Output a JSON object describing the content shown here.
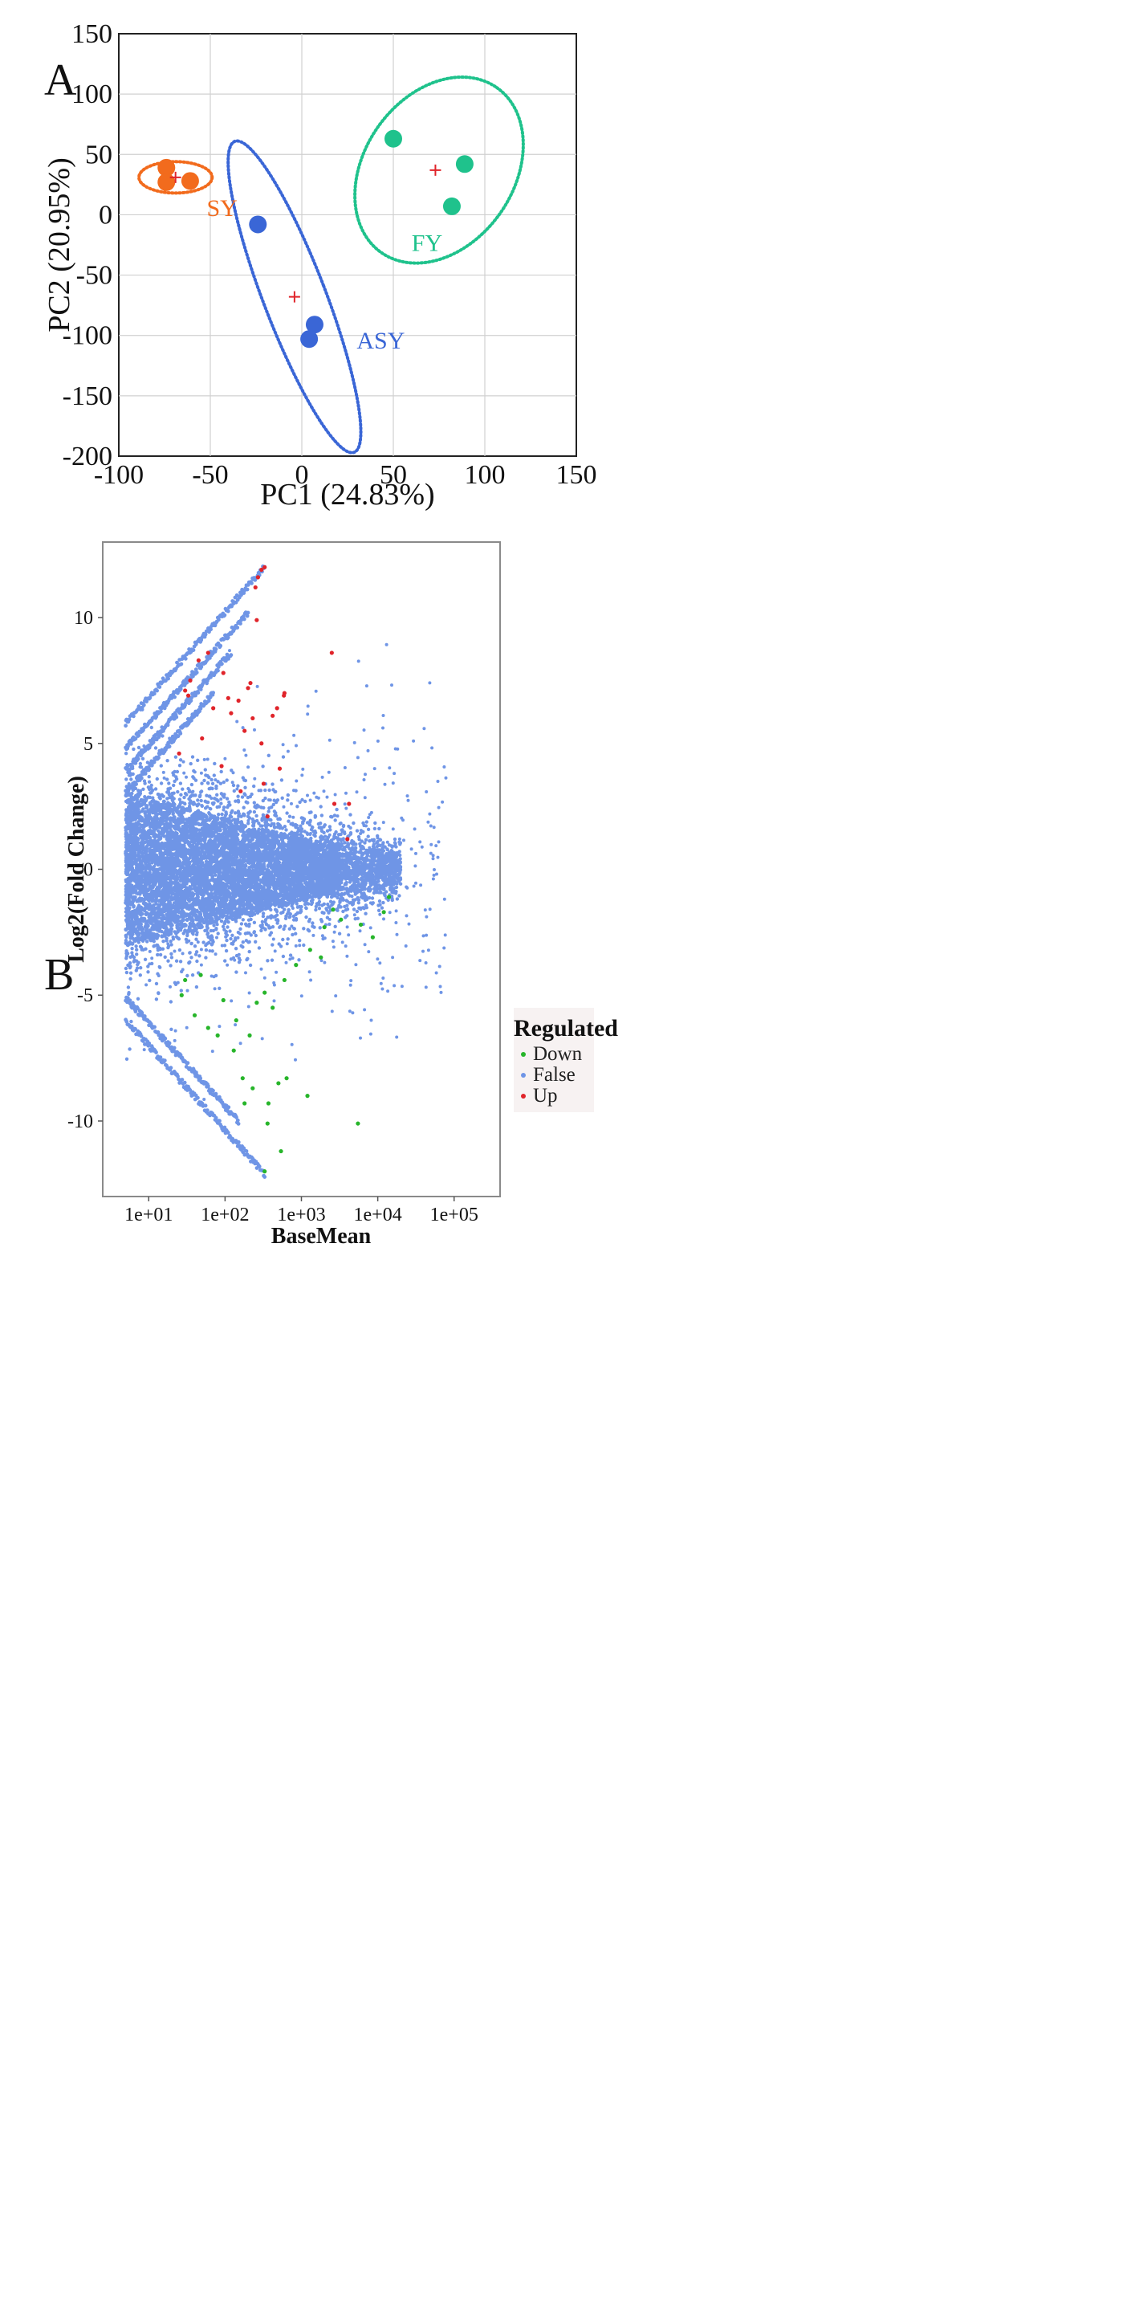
{
  "chart_data": [
    {
      "panel": "A",
      "type": "scatter",
      "xlabel": "PC1 (24.83%)",
      "ylabel": "PC2 (20.95%)",
      "xlim": [
        -100,
        150
      ],
      "ylim": [
        -200,
        150
      ],
      "xticks": [
        -100,
        -50,
        0,
        50,
        100,
        150
      ],
      "yticks": [
        -200,
        -150,
        -100,
        -50,
        0,
        50,
        100,
        150
      ],
      "grid": true,
      "groups": [
        {
          "name": "SY",
          "color": "#f26b1d",
          "points": [
            [
              -74,
              39
            ],
            [
              -74,
              27
            ],
            [
              -61,
              28
            ]
          ],
          "centroid": [
            -69,
            31
          ],
          "ellipse": {
            "center": [
              -69,
              31
            ],
            "rx": 20,
            "ry": 13,
            "angle": 0
          },
          "label_at": [
            -52,
            -1
          ]
        },
        {
          "name": "ASY",
          "color": "#3a66d6",
          "points": [
            [
              -24,
              -8
            ],
            [
              7,
              -91
            ],
            [
              4,
              -103
            ]
          ],
          "centroid": [
            -4,
            -68
          ],
          "ellipse": {
            "center": [
              -4,
              -68
            ],
            "rx": 17,
            "ry": 138,
            "angle": -21
          },
          "label_at": [
            30,
            -111
          ]
        },
        {
          "name": "FY",
          "color": "#1fc28c",
          "points": [
            [
              50,
              63
            ],
            [
              89,
              42
            ],
            [
              82,
              7
            ]
          ],
          "centroid": [
            73,
            37
          ],
          "ellipse": {
            "center": [
              75,
              37
            ],
            "rx": 55,
            "ry": 62,
            "angle": -55
          },
          "label_at": [
            60,
            -30
          ]
        }
      ]
    },
    {
      "panel": "B",
      "type": "scatter",
      "xlabel": "BaseMean",
      "ylabel": "Log2(Fold Change)",
      "xscale": "log",
      "xlim": [
        2.5,
        400000
      ],
      "ylim": [
        -13,
        13
      ],
      "xticks": [
        "1e+01",
        "1e+02",
        "1e+03",
        "1e+04",
        "1e+05"
      ],
      "yticks": [
        -10,
        -5,
        0,
        5,
        10
      ],
      "legend": {
        "title": "Regulated",
        "entries": [
          {
            "label": "Down",
            "color": "#27b52a"
          },
          {
            "label": "False",
            "color": "#6f95e6"
          },
          {
            "label": "Up",
            "color": "#e0242a"
          }
        ]
      },
      "structure": {
        "main_cloud": "dense symmetric fan of non-significant genes around 0, spread ±4 at low BaseMean narrowing to ±0.5 near 1e+05",
        "up_diagonals": [
          {
            "from": [
              5,
              5.8
            ],
            "to": [
              330,
              12
            ]
          },
          {
            "from": [
              5,
              4.8
            ],
            "to": [
              200,
              10.2
            ]
          },
          {
            "from": [
              5,
              3.9
            ],
            "to": [
              120,
              8.6
            ]
          },
          {
            "from": [
              5,
              3.0
            ],
            "to": [
              70,
              7.0
            ]
          }
        ],
        "down_diagonals": [
          {
            "from": [
              5,
              -6.0
            ],
            "to": [
              330,
              -12.1
            ]
          },
          {
            "from": [
              5,
              -5.1
            ],
            "to": [
              150,
              -10.0
            ]
          }
        ],
        "up_points": [
          [
            330,
            12
          ],
          [
            300,
            11.9
          ],
          [
            270,
            11.6
          ],
          [
            250,
            11.2
          ],
          [
            33,
            6.9
          ],
          [
            30,
            7.1
          ],
          [
            35,
            7.5
          ],
          [
            45,
            8.3
          ],
          [
            60,
            8.6
          ],
          [
            95,
            7.8
          ],
          [
            110,
            6.8
          ],
          [
            70,
            6.4
          ],
          [
            120,
            6.2
          ],
          [
            150,
            6.7
          ],
          [
            200,
            7.2
          ],
          [
            230,
            6.0
          ],
          [
            180,
            5.5
          ],
          [
            300,
            5.0
          ],
          [
            520,
            4.0
          ],
          [
            590,
            6.9
          ],
          [
            600,
            7.0
          ],
          [
            420,
            6.1
          ],
          [
            260,
            9.9
          ],
          [
            215,
            7.4
          ],
          [
            2500,
            8.6
          ],
          [
            4200,
            2.6
          ],
          [
            4000,
            1.2
          ],
          [
            2700,
            2.6
          ],
          [
            25,
            4.6
          ],
          [
            50,
            5.2
          ],
          [
            90,
            4.1
          ],
          [
            160,
            3.1
          ],
          [
            320,
            3.4
          ],
          [
            360,
            2.1
          ],
          [
            480,
            6.4
          ]
        ],
        "down_points": [
          [
            5500,
            -10.1
          ],
          [
            330,
            -12.0
          ],
          [
            540,
            -11.2
          ],
          [
            360,
            -10.1
          ],
          [
            180,
            -9.3
          ],
          [
            170,
            -8.3
          ],
          [
            230,
            -8.7
          ],
          [
            370,
            -9.3
          ],
          [
            1200,
            -9.0
          ],
          [
            500,
            -8.5
          ],
          [
            640,
            -8.3
          ],
          [
            130,
            -7.2
          ],
          [
            80,
            -6.6
          ],
          [
            60,
            -6.3
          ],
          [
            40,
            -5.8
          ],
          [
            27,
            -5.0
          ],
          [
            30,
            -4.4
          ],
          [
            48,
            -4.2
          ],
          [
            95,
            -5.2
          ],
          [
            140,
            -6.0
          ],
          [
            210,
            -6.6
          ],
          [
            260,
            -5.3
          ],
          [
            330,
            -4.9
          ],
          [
            420,
            -5.5
          ],
          [
            600,
            -4.4
          ],
          [
            850,
            -3.8
          ],
          [
            1300,
            -3.2
          ],
          [
            2000,
            -2.3
          ],
          [
            3300,
            -2.0
          ],
          [
            8600,
            -2.7
          ],
          [
            12000,
            -1.7
          ],
          [
            14000,
            -1.1
          ],
          [
            6000,
            -2.2
          ],
          [
            2600,
            -1.6
          ],
          [
            1800,
            -3.5
          ]
        ]
      }
    }
  ]
}
